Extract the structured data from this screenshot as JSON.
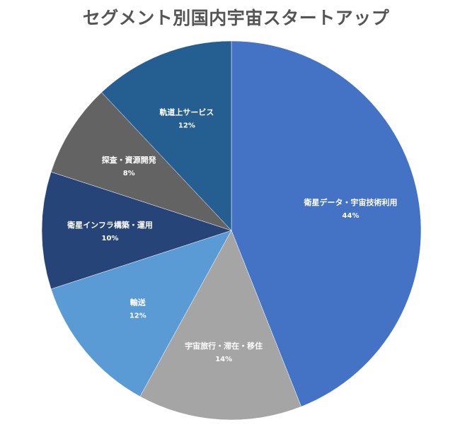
{
  "chart_data": {
    "type": "pie",
    "title": "セグメント別国内宇宙スタートアップ",
    "slices": [
      {
        "label": "衛星データ・宇宙技術利用",
        "value": 44,
        "value_label": "44%",
        "color": "#4472c4"
      },
      {
        "label": "宇宙旅行・滞在・移住",
        "value": 14,
        "value_label": "14%",
        "color": "#a5a5a5"
      },
      {
        "label": "輸送",
        "value": 12,
        "value_label": "12%",
        "color": "#5b9bd5"
      },
      {
        "label": "衛星インフラ構築・運用",
        "value": 10,
        "value_label": "10%",
        "color": "#264478"
      },
      {
        "label": "探査・資源開発",
        "value": 8,
        "value_label": "8%",
        "color": "#636363"
      },
      {
        "label": "軌道上サービス",
        "value": 12,
        "value_label": "12%",
        "color": "#255e91"
      }
    ],
    "start_angle": "12 o'clock",
    "direction": "clockwise",
    "legend": "none"
  }
}
